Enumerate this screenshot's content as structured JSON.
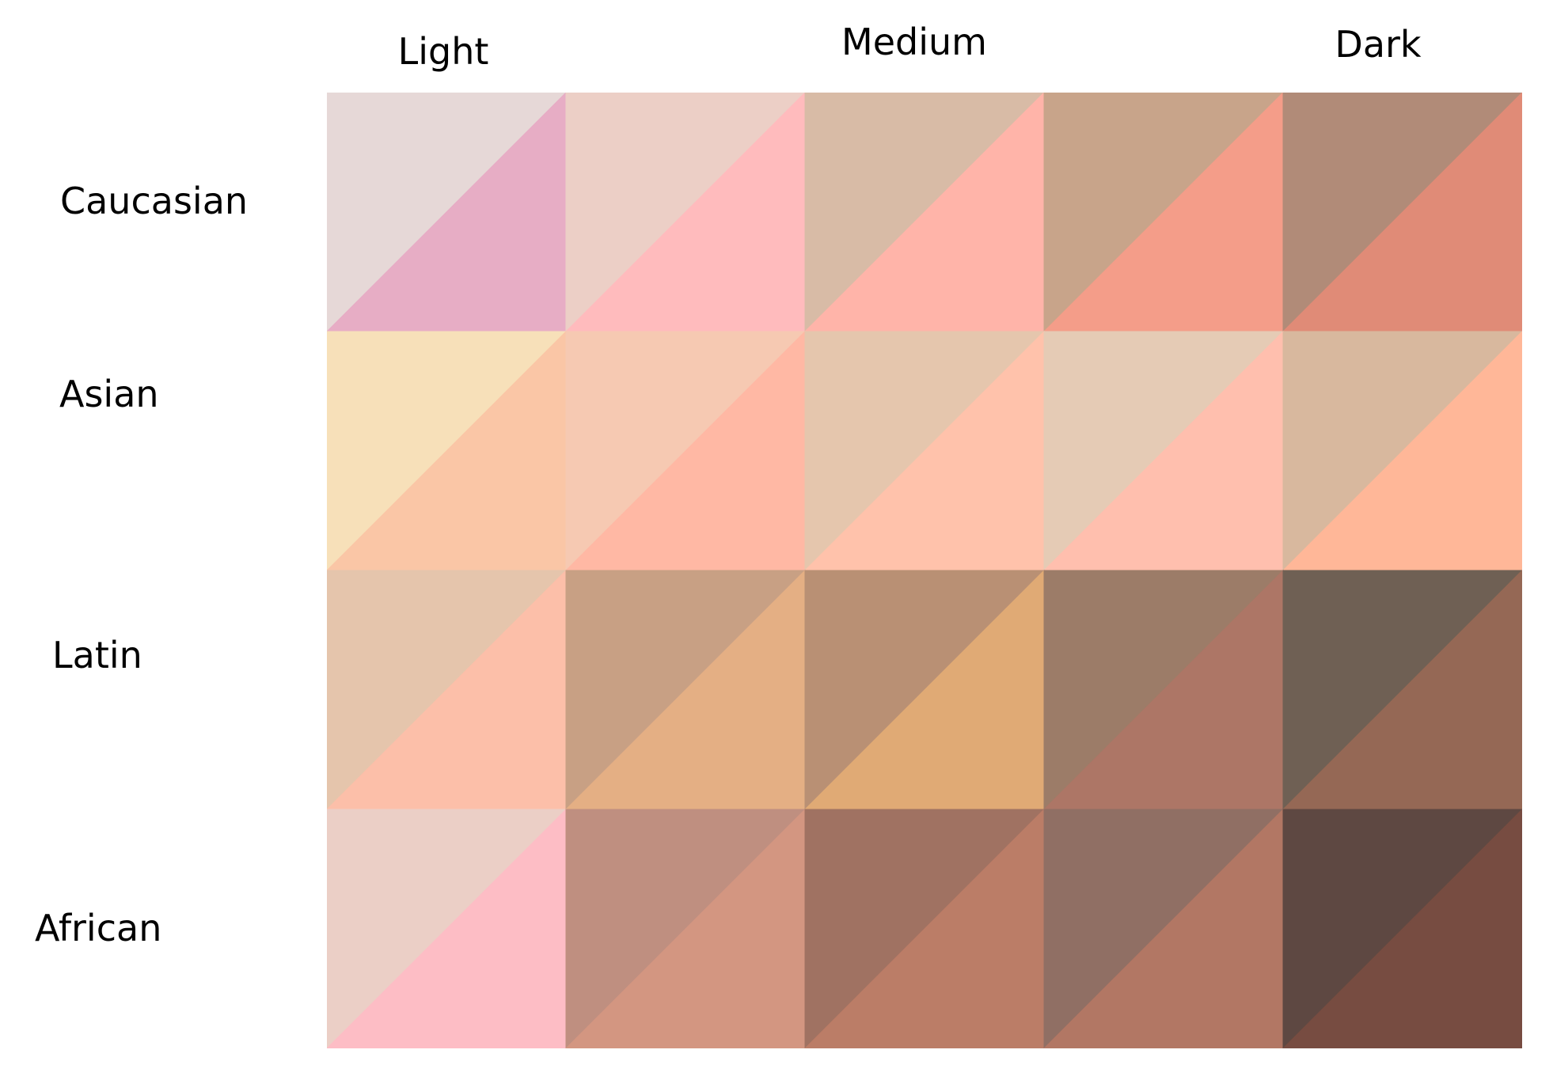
{
  "columns": {
    "light": "Light",
    "medium": "Medium",
    "dark": "Dark"
  },
  "rows": [
    {
      "label": "Caucasian"
    },
    {
      "label": "Asian"
    },
    {
      "label": "Latin"
    },
    {
      "label": "African"
    }
  ],
  "swatches": [
    [
      {
        "upper": "#e6d8d7",
        "lower": "#e7adc5"
      },
      {
        "upper": "#eccfc6",
        "lower": "#ffbbbd"
      },
      {
        "upper": "#d8bba6",
        "lower": "#ffb4a9"
      },
      {
        "upper": "#c8a48a",
        "lower": "#f49d89"
      },
      {
        "upper": "#b18b78",
        "lower": "#e08b77"
      }
    ],
    [
      {
        "upper": "#f7e0b9",
        "lower": "#fac6a6"
      },
      {
        "upper": "#f6c9b2",
        "lower": "#ffb8a4"
      },
      {
        "upper": "#e5c6ad",
        "lower": "#ffc2ab"
      },
      {
        "upper": "#e5cbb5",
        "lower": "#ffbfae"
      },
      {
        "upper": "#d8b89e",
        "lower": "#ffb798"
      }
    ],
    [
      {
        "upper": "#e5c5ac",
        "lower": "#fcbfa9"
      },
      {
        "upper": "#c8a084",
        "lower": "#e4af84"
      },
      {
        "upper": "#b99074",
        "lower": "#e0aa75"
      },
      {
        "upper": "#9c7c68",
        "lower": "#ad7666"
      },
      {
        "upper": "#6f6054",
        "lower": "#956855"
      }
    ],
    [
      {
        "upper": "#ebcfc6",
        "lower": "#fdbdc5"
      },
      {
        "upper": "#bf8f80",
        "lower": "#d39681"
      },
      {
        "upper": "#a07262",
        "lower": "#bb7d67"
      },
      {
        "upper": "#906f64",
        "lower": "#b27764"
      },
      {
        "upper": "#5e4842",
        "lower": "#774c41"
      }
    ]
  ]
}
